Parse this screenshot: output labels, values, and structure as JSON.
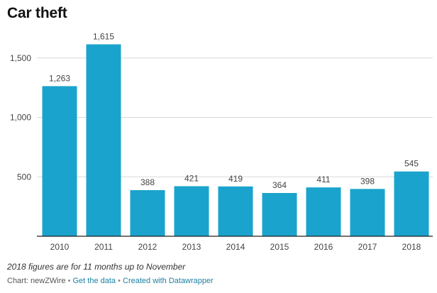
{
  "title": "Car theft",
  "note": "2018 figures are for 11 months up to November",
  "footer": {
    "chart_by": "Chart: newZWire",
    "get_data": "Get the data",
    "created_with": "Created with Datawrapper",
    "separator": " • "
  },
  "colors": {
    "bar": "#1aa3cc",
    "grid": "#d8d8d8",
    "axis": "#222222",
    "text": "#444444"
  },
  "chart_data": {
    "type": "bar",
    "title": "Car theft",
    "xlabel": "",
    "ylabel": "",
    "categories": [
      "2010",
      "2011",
      "2012",
      "2013",
      "2014",
      "2015",
      "2016",
      "2017",
      "2018"
    ],
    "values": [
      1263,
      1615,
      388,
      421,
      419,
      364,
      411,
      398,
      545
    ],
    "value_labels": [
      "1,263",
      "1,615",
      "388",
      "421",
      "419",
      "364",
      "411",
      "398",
      "545"
    ],
    "yticks": [
      500,
      1000,
      1500
    ],
    "ytick_labels": [
      "500",
      "1,000",
      "1,500"
    ],
    "ylim": [
      0,
      1750
    ],
    "grid": true,
    "legend": "none"
  }
}
